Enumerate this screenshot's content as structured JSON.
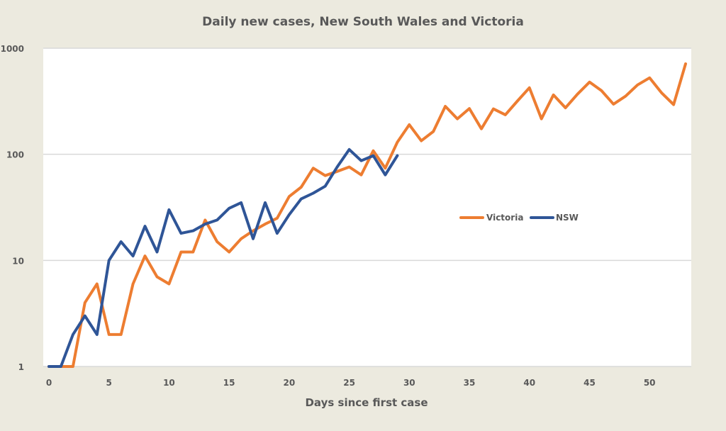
{
  "chart_data": {
    "type": "line",
    "title": "Daily new cases, New South Wales and Victoria",
    "xlabel": "Days since first case",
    "ylabel": "",
    "yscale": "log",
    "xlim": [
      0,
      53
    ],
    "ylim": [
      1,
      1000
    ],
    "xticks": [
      "0",
      "5",
      "10",
      "15",
      "20",
      "25",
      "30",
      "35",
      "40",
      "45",
      "50"
    ],
    "xtick_values": [
      0,
      5,
      10,
      15,
      20,
      25,
      30,
      35,
      40,
      45,
      50
    ],
    "yticks": [
      "1",
      "10",
      "100",
      "1000"
    ],
    "ytick_values": [
      1,
      10,
      100,
      1000
    ],
    "grid": true,
    "legend_position": "center-right",
    "series": [
      {
        "name": "Victoria",
        "color": "#ED7D31",
        "x": [
          0,
          1,
          2,
          3,
          4,
          5,
          6,
          7,
          8,
          9,
          10,
          11,
          12,
          13,
          14,
          15,
          16,
          17,
          18,
          19,
          20,
          21,
          22,
          23,
          24,
          25,
          26,
          27,
          28,
          29,
          30,
          31,
          32,
          33,
          34,
          35,
          36,
          37,
          38,
          39,
          40,
          41,
          42,
          43,
          44,
          45,
          46,
          47,
          48,
          49,
          50,
          51,
          52,
          53
        ],
        "values": [
          1,
          1,
          1,
          4,
          6,
          2,
          2,
          6,
          11,
          7,
          6,
          12,
          12,
          24,
          15,
          12,
          16,
          19,
          22,
          25,
          40,
          49,
          74,
          63,
          69,
          76,
          64,
          108,
          74,
          130,
          190,
          134,
          164,
          283,
          216,
          270,
          174,
          268,
          236,
          318,
          424,
          216,
          363,
          274,
          369,
          479,
          398,
          297,
          353,
          451,
          526,
          380,
          294,
          712
        ]
      },
      {
        "name": "NSW",
        "color": "#2F5597",
        "x": [
          0,
          1,
          2,
          3,
          4,
          5,
          6,
          7,
          8,
          9,
          10,
          11,
          12,
          13,
          14,
          15,
          16,
          17,
          18,
          19,
          20,
          21,
          22,
          23,
          24,
          25,
          26,
          27,
          28,
          29
        ],
        "values": [
          1,
          1,
          2,
          3,
          2,
          10,
          15,
          11,
          21,
          12,
          30,
          18,
          19,
          22,
          24,
          31,
          35,
          16,
          35,
          18,
          27,
          38,
          43,
          50,
          76,
          111,
          87,
          97,
          64,
          97
        ]
      }
    ]
  }
}
